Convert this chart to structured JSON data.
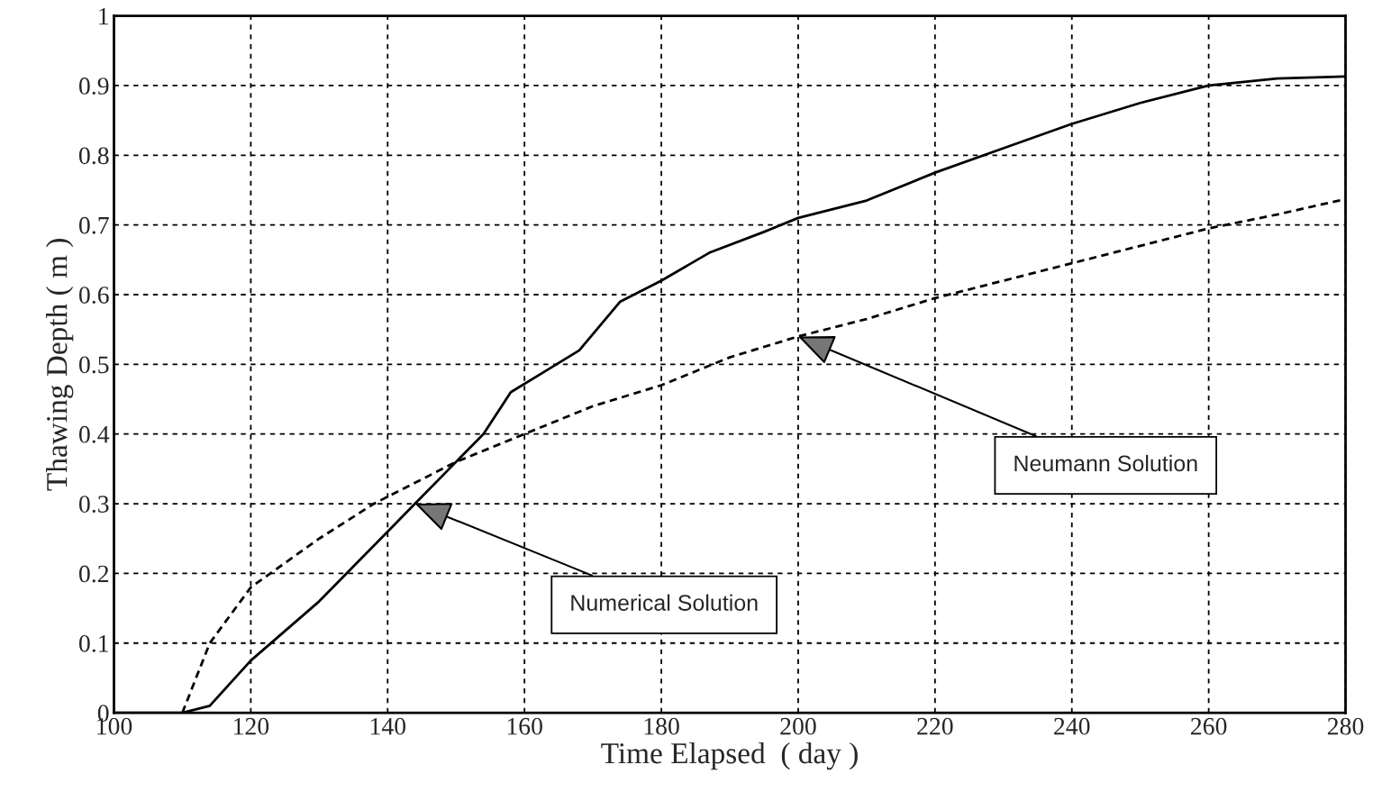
{
  "chart_data": {
    "type": "line",
    "xlabel": "Time Elapsed  ( day )",
    "ylabel": "Thawing Depth ( m )",
    "series": [
      {
        "line_style": "solid",
        "color": "#000000",
        "x": [
          100,
          110,
          114,
          120,
          130,
          138,
          144,
          150,
          154,
          158,
          163,
          168,
          174,
          176,
          180,
          187,
          195,
          200,
          210,
          220,
          230,
          240,
          250,
          260,
          270,
          280
        ],
        "values": [
          0,
          0,
          0.01,
          0.075,
          0.16,
          0.24,
          0.3,
          0.36,
          0.4,
          0.46,
          0.49,
          0.52,
          0.59,
          0.6,
          0.62,
          0.66,
          0.69,
          0.71,
          0.735,
          0.775,
          0.81,
          0.845,
          0.875,
          0.9,
          0.91,
          0.913
        ]
      },
      {
        "line_style": "dashed",
        "color": "#000000",
        "x": [
          110,
          112,
          114,
          120,
          130,
          138,
          144,
          150,
          160,
          170,
          180,
          190,
          200,
          210,
          220,
          230,
          240,
          250,
          260,
          270,
          280
        ],
        "values": [
          0,
          0.05,
          0.1,
          0.18,
          0.25,
          0.3,
          0.33,
          0.36,
          0.4,
          0.44,
          0.47,
          0.51,
          0.54,
          0.565,
          0.595,
          0.62,
          0.645,
          0.67,
          0.695,
          0.715,
          0.737
        ]
      }
    ],
    "annotations": [
      {
        "text": "Numerical Solution",
        "x": 144,
        "y": 0.3
      },
      {
        "text": "Neumann Solution",
        "x": 200,
        "y": 0.54
      }
    ],
    "xlim": [
      100,
      280
    ],
    "xticks": [
      100,
      120,
      140,
      160,
      180,
      200,
      220,
      240,
      260,
      280
    ],
    "ylim": [
      0,
      1
    ],
    "yticks": [
      0,
      0.1,
      0.2,
      0.3,
      0.4,
      0.5,
      0.6,
      0.7,
      0.8,
      0.9,
      1
    ],
    "grid": true
  }
}
